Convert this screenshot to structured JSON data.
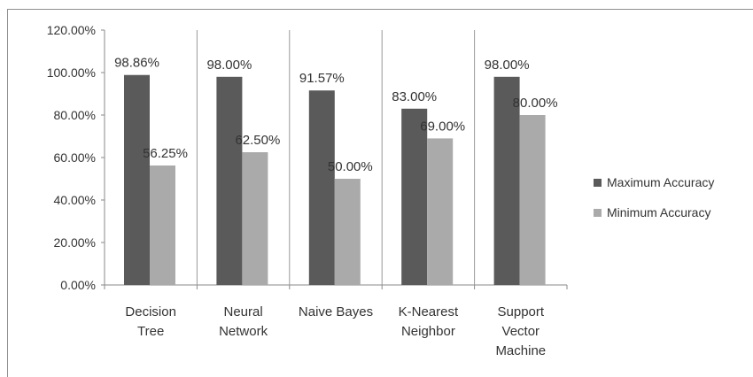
{
  "chart_data": {
    "type": "bar",
    "categories": [
      [
        "Decision",
        "Tree"
      ],
      [
        "Neural",
        "Network"
      ],
      [
        "Naive Bayes"
      ],
      [
        "K-Nearest",
        "Neighbor"
      ],
      [
        "Support",
        "Vector",
        "Machine"
      ]
    ],
    "series": [
      {
        "name": "Maximum Accuracy",
        "values": [
          98.86,
          98.0,
          91.57,
          83.0,
          98.0
        ],
        "labels": [
          "98.86%",
          "98.00%",
          "91.57%",
          "83.00%",
          "98.00%"
        ],
        "color": "#5a5a5a"
      },
      {
        "name": "Minimum Accuracy",
        "values": [
          56.25,
          62.5,
          50.0,
          69.0,
          80.0
        ],
        "labels": [
          "56.25%",
          "62.50%",
          "50.00%",
          "69.00%",
          "80.00%"
        ],
        "color": "#aaaaaa"
      }
    ],
    "ylim": [
      0,
      120
    ],
    "ytick_values": [
      0,
      20,
      40,
      60,
      80,
      100,
      120
    ],
    "ytick_labels": [
      "0.00%",
      "20.00%",
      "40.00%",
      "60.00%",
      "80.00%",
      "100.00%",
      "120.00%"
    ],
    "grid": "vertical separators",
    "legend_position": "right",
    "title": "",
    "xlabel": "",
    "ylabel": ""
  }
}
